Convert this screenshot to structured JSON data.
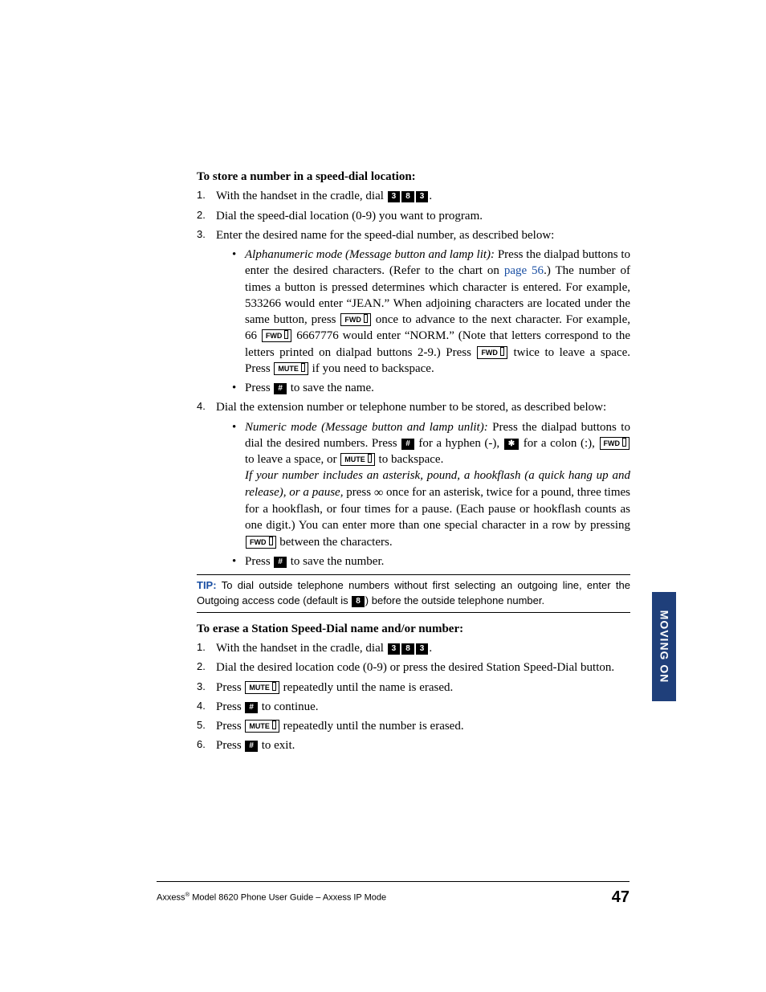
{
  "colors": {
    "text": "#000000",
    "link": "#1a4fa3",
    "tip": "#1a4fa3",
    "tab_bg": "#1f3f7a",
    "tab_text": "#ffffff",
    "key_dark_bg": "#000000",
    "key_dark_text": "#ffffff",
    "rule": "#000000"
  },
  "keys": {
    "d3": "3",
    "d8": "8",
    "hash": "#",
    "star": "✱",
    "fwd": "FWD",
    "mute": "MUTE",
    "inf": "∞"
  },
  "section1": {
    "heading": "To store a number in a speed-dial location:",
    "s1_pre": "With the handset in the cradle, dial ",
    "s1_post": ".",
    "s2": "Dial the speed-dial location (0-9) you want to program.",
    "s3": "Enter the desired name for the speed-dial number, as described below:",
    "b1_lead": "Alphanumeric mode (Message button and lamp lit):",
    "b1_a": " Press the dialpad buttons to enter the desired characters. (Refer to the chart on ",
    "b1_link": "page 56",
    "b1_b": ".) The number of times a button is pressed determines which character is entered. For example, 533266 would enter “JEAN.” When adjoining characters are located under the same button, press ",
    "b1_c": " once to advance to the next character. For example, 66 ",
    "b1_d": " 6667776 would enter “NORM.” (Note that letters correspond to the letters printed on dialpad buttons 2-9.) Press ",
    "b1_e": " twice to leave a space. Press ",
    "b1_f": " if you need to backspace.",
    "b2_a": "Press ",
    "b2_b": " to save the name.",
    "s4": "Dial the extension number or telephone number to be stored, as described below:",
    "b3_lead": "Numeric mode (Message button and lamp unlit):",
    "b3_a": " Press the dialpad buttons to dial the desired numbers. Press ",
    "b3_b": " for a hyphen (-), ",
    "b3_c": " for a colon (:), ",
    "b3_d": " to leave a space, or ",
    "b3_e": " to backspace.",
    "b3_it": "If your number includes an asterisk, pound, a hookflash (a quick hang up and release), or a pause,",
    "b3_f": " press ",
    "b3_g": " once for an asterisk, twice for a pound, three times for a hookflash, or four times for a pause. (Each pause or hookflash counts as one digit.) You can enter more than one special character in a row by pressing ",
    "b3_h": " between the characters.",
    "b4_a": "Press ",
    "b4_b": " to save the number."
  },
  "tip": {
    "label": "TIP:",
    "a": " To dial outside telephone numbers without first selecting an outgoing line, enter the Outgoing access code (default is ",
    "b": ") before the outside telephone number."
  },
  "section2": {
    "heading": "To erase a Station Speed-Dial name and/or number:",
    "s1_pre": "With the handset in the cradle, dial ",
    "s1_post": ".",
    "s2": "Dial the desired location code (0-9) or press the desired Station Speed-Dial button.",
    "s3a": "Press ",
    "s3b": " repeatedly until the name is erased.",
    "s4a": "Press ",
    "s4b": " to continue.",
    "s5a": "Press ",
    "s5b": " repeatedly until the number is erased.",
    "s6a": "Press ",
    "s6b": " to exit."
  },
  "side_tab": "MOVING ON",
  "footer": {
    "brand": "Axxess",
    "rest": "  Model 8620 Phone User Guide – Axxess IP Mode",
    "page": "47"
  }
}
